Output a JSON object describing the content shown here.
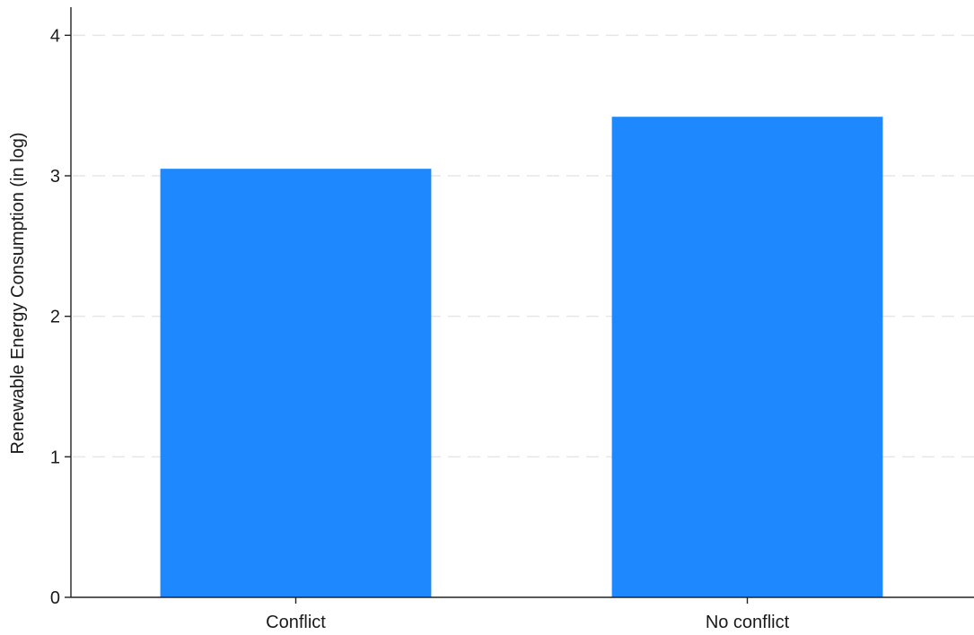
{
  "chart_data": {
    "type": "bar",
    "title": "",
    "xlabel": "",
    "ylabel": "Renewable Energy Consumption (in log)",
    "categories": [
      "Conflict",
      "No conflict"
    ],
    "values": [
      3.05,
      3.42
    ],
    "ylim": [
      0,
      4.2
    ],
    "yticks": [
      0,
      1,
      2,
      3,
      4
    ],
    "grid": true,
    "legend": "none",
    "bar_color": "#1E88FF"
  }
}
